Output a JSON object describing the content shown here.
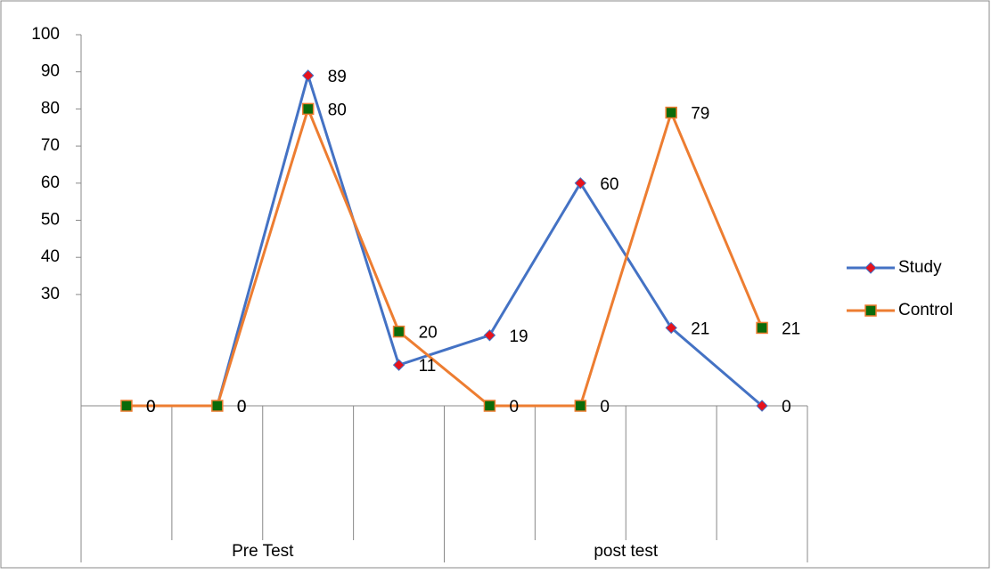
{
  "chart_data": {
    "type": "line",
    "categories": [
      null,
      null,
      null,
      null,
      null,
      null,
      null,
      null
    ],
    "category_groups": [
      "Pre Test",
      "post test"
    ],
    "series": [
      {
        "name": "Study",
        "color": "#4472c4",
        "marker": "diamond",
        "marker_color": "#e8121b",
        "values": [
          0,
          0,
          89,
          11,
          19,
          60,
          21,
          0
        ]
      },
      {
        "name": "Control",
        "color": "#ed7d31",
        "marker": "square",
        "marker_color": "#0a6b0a",
        "values": [
          0,
          0,
          80,
          20,
          0,
          0,
          79,
          21
        ]
      }
    ],
    "ylim": [
      0,
      100
    ],
    "yticks": [
      30,
      40,
      50,
      60,
      70,
      80,
      90,
      100
    ],
    "legend": "right"
  }
}
